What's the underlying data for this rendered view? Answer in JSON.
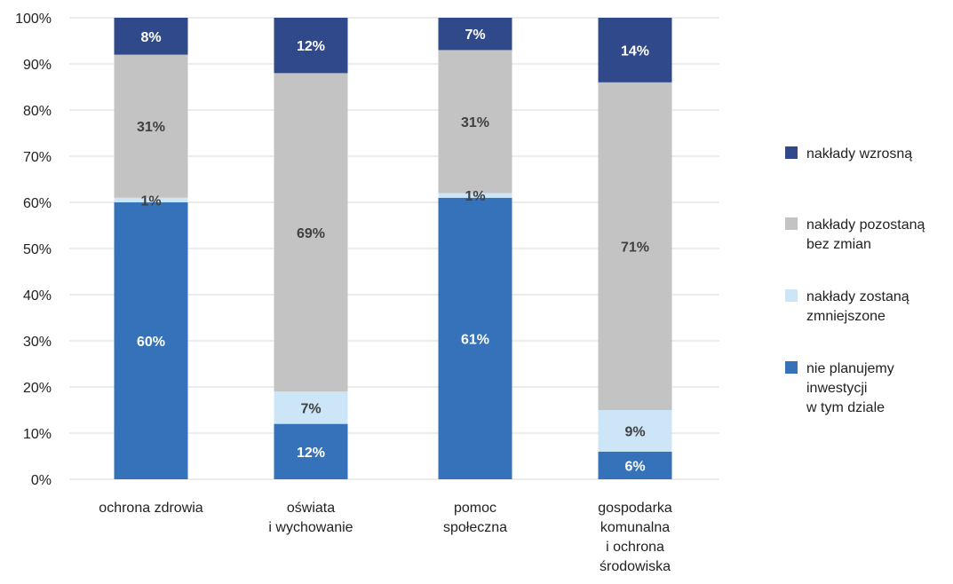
{
  "chart_data": {
    "type": "bar",
    "stacked": true,
    "categories": [
      [
        "ochrona zdrowia"
      ],
      [
        "oświata",
        "i wychowanie"
      ],
      [
        "pomoc",
        "społeczna"
      ],
      [
        "gospodarka",
        "komunalna",
        "i ochrona",
        "środowiska"
      ]
    ],
    "series": [
      {
        "name": [
          "nie planujemy",
          "inwestycji",
          "w tym dziale"
        ],
        "color": "#3672B9",
        "label_color": "#ffffff",
        "values": [
          60,
          12,
          61,
          6
        ],
        "labels": [
          "60%",
          "12%",
          "61%",
          "6%"
        ]
      },
      {
        "name": [
          "nakłady zostaną",
          "zmniejszone"
        ],
        "color": "#CCE6F8",
        "label_color": "#404040",
        "values": [
          1,
          7,
          1,
          9
        ],
        "labels": [
          "1%",
          "7%",
          "1%",
          "9%"
        ]
      },
      {
        "name": [
          "nakłady pozostaną",
          "bez zmian"
        ],
        "color": "#C3C3C3",
        "label_color": "#404040",
        "values": [
          31,
          69,
          31,
          71
        ],
        "labels": [
          "31%",
          "69%",
          "31%",
          "71%"
        ]
      },
      {
        "name": [
          "nakłady wzrosną"
        ],
        "color": "#30498A",
        "label_color": "#ffffff",
        "values": [
          8,
          12,
          7,
          14
        ],
        "labels": [
          "8%",
          "12%",
          "7%",
          "14%"
        ]
      }
    ],
    "legend_order": [
      3,
      2,
      1,
      0
    ],
    "legend_position": "right",
    "ylim": [
      0,
      100
    ],
    "yticks": [
      "0%",
      "10%",
      "20%",
      "30%",
      "40%",
      "50%",
      "60%",
      "70%",
      "80%",
      "90%",
      "100%"
    ],
    "grid": true,
    "gridline_color": "#D9D9D9",
    "title": "",
    "xlabel": "",
    "ylabel": ""
  }
}
